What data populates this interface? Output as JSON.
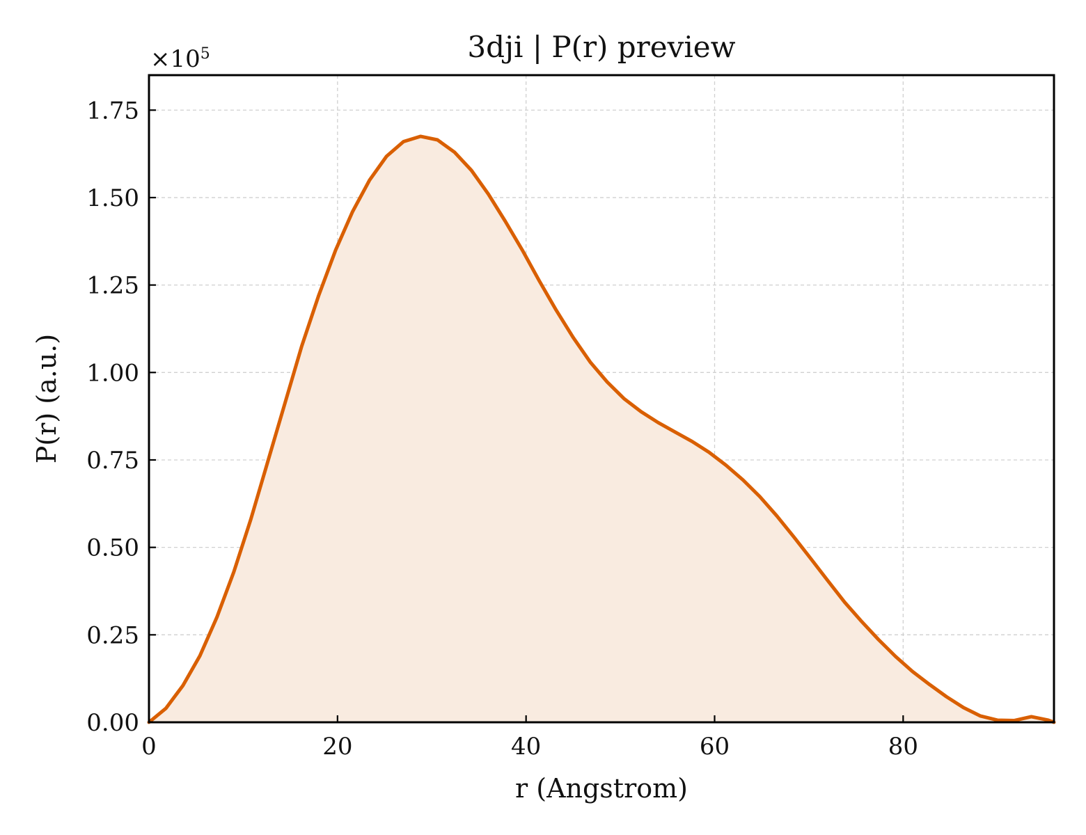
{
  "chart_data": {
    "type": "area",
    "title": "3dji | P(r) preview",
    "xlabel": "r (Angstrom)",
    "ylabel": "P(r) (a.u.)",
    "y_offset_label": "×10",
    "y_offset_exponent": "5",
    "y_scale": 100000,
    "xlim": [
      0,
      96
    ],
    "ylim": [
      0,
      1.85
    ],
    "xticks": [
      0,
      20,
      40,
      60,
      80
    ],
    "xtick_labels": [
      "0",
      "20",
      "40",
      "60",
      "80"
    ],
    "yticks": [
      0,
      0.25,
      0.5,
      0.75,
      1.0,
      1.25,
      1.5,
      1.75
    ],
    "ytick_labels": [
      "0.00",
      "0.25",
      "0.50",
      "0.75",
      "1.00",
      "1.25",
      "1.50",
      "1.75"
    ],
    "grid": true,
    "colors": {
      "line": "#d95f02",
      "fill": "#f9ebe0"
    },
    "series": [
      {
        "x": [
          0,
          1.8,
          3.6,
          5.4,
          7.2,
          9.0,
          10.8,
          12.6,
          14.4,
          16.2,
          18.0,
          19.8,
          21.6,
          23.4,
          25.2,
          27.0,
          28.8,
          30.6,
          32.4,
          34.2,
          36.0,
          37.8,
          39.6,
          41.4,
          43.2,
          45.0,
          46.8,
          48.6,
          50.4,
          52.2,
          54.0,
          55.8,
          57.6,
          59.4,
          61.2,
          63.0,
          64.8,
          66.6,
          68.4,
          70.2,
          72.0,
          73.8,
          75.6,
          77.4,
          79.2,
          81.0,
          82.8,
          84.6,
          86.4,
          88.2,
          90.0,
          91.8,
          93.6,
          95.4,
          96.0
        ],
        "values": [
          0.0,
          0.04,
          0.105,
          0.19,
          0.3,
          0.43,
          0.58,
          0.745,
          0.91,
          1.075,
          1.22,
          1.35,
          1.46,
          1.55,
          1.618,
          1.66,
          1.675,
          1.665,
          1.63,
          1.578,
          1.51,
          1.432,
          1.35,
          1.262,
          1.178,
          1.1,
          1.03,
          0.973,
          0.925,
          0.888,
          0.857,
          0.83,
          0.803,
          0.772,
          0.735,
          0.693,
          0.645,
          0.59,
          0.53,
          0.468,
          0.405,
          0.343,
          0.288,
          0.236,
          0.188,
          0.145,
          0.108,
          0.073,
          0.042,
          0.018,
          0.006,
          0.005,
          0.016,
          0.006,
          0.0
        ]
      }
    ]
  }
}
